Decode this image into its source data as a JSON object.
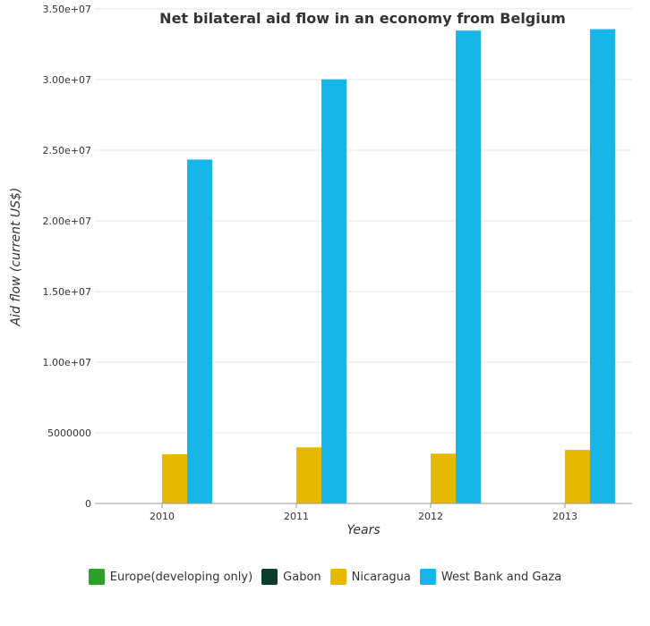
{
  "chart_data": {
    "type": "bar",
    "title": "Net bilateral aid flow in an economy from Belgium",
    "xlabel": "Years",
    "ylabel": "Aid flow (current US$)",
    "categories": [
      "2010",
      "2011",
      "2012",
      "2013"
    ],
    "ylim": [
      0,
      35000000
    ],
    "yticks": [
      0,
      5000000,
      10000000,
      15000000,
      20000000,
      25000000,
      30000000,
      35000000
    ],
    "ytick_labels": [
      "0",
      "5000000",
      "1.00e+07",
      "1.50e+07",
      "2.00e+07",
      "2.50e+07",
      "3.00e+07",
      "3.50e+07"
    ],
    "grid": true,
    "legend_position": "bottom",
    "series": [
      {
        "name": "Europe(developing only)",
        "color": "#2ca02c",
        "values": [
          20000,
          10000,
          10000,
          10000
        ]
      },
      {
        "name": "Gabon",
        "color": "#0b3d2e",
        "values": [
          10000,
          10000,
          10000,
          10000
        ]
      },
      {
        "name": "Nicaragua",
        "color": "#e6b800",
        "values": [
          3480000,
          3970000,
          3530000,
          3790000
        ]
      },
      {
        "name": "West Bank and Gaza",
        "color": "#18b5e8",
        "values": [
          24340000,
          30020000,
          33470000,
          33570000
        ]
      }
    ]
  }
}
